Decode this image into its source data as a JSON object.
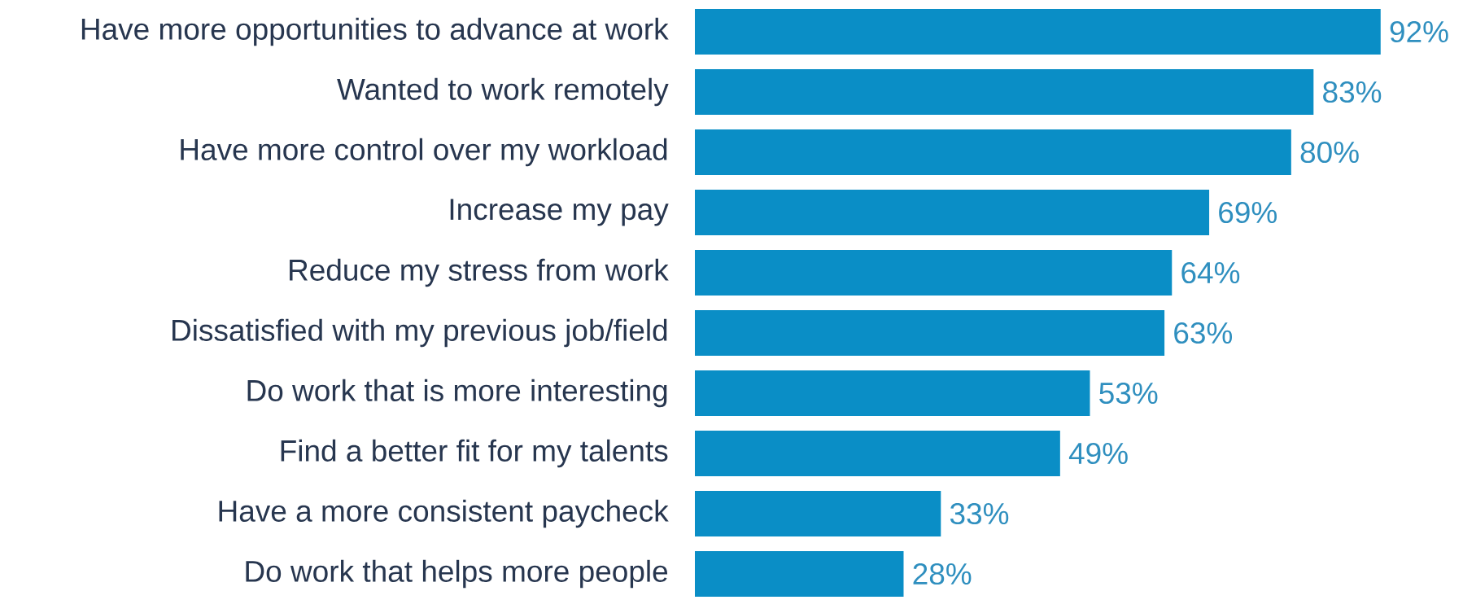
{
  "chart_data": {
    "type": "bar",
    "orientation": "horizontal",
    "categories": [
      "Have more opportunities to advance at work",
      "Wanted to work remotely",
      "Have more control over my workload",
      "Increase my pay",
      "Reduce my stress from work",
      "Dissatisfied with my previous job/field",
      "Do work that is more interesting",
      "Find a better fit for my talents",
      "Have a more consistent paycheck",
      "Do work that helps more people"
    ],
    "values": [
      92,
      83,
      80,
      69,
      64,
      63,
      53,
      49,
      33,
      28
    ],
    "value_labels": [
      "92%",
      "83%",
      "80%",
      "69%",
      "64%",
      "63%",
      "53%",
      "49%",
      "33%",
      "28%"
    ],
    "color": "#0a8ec6"
  }
}
